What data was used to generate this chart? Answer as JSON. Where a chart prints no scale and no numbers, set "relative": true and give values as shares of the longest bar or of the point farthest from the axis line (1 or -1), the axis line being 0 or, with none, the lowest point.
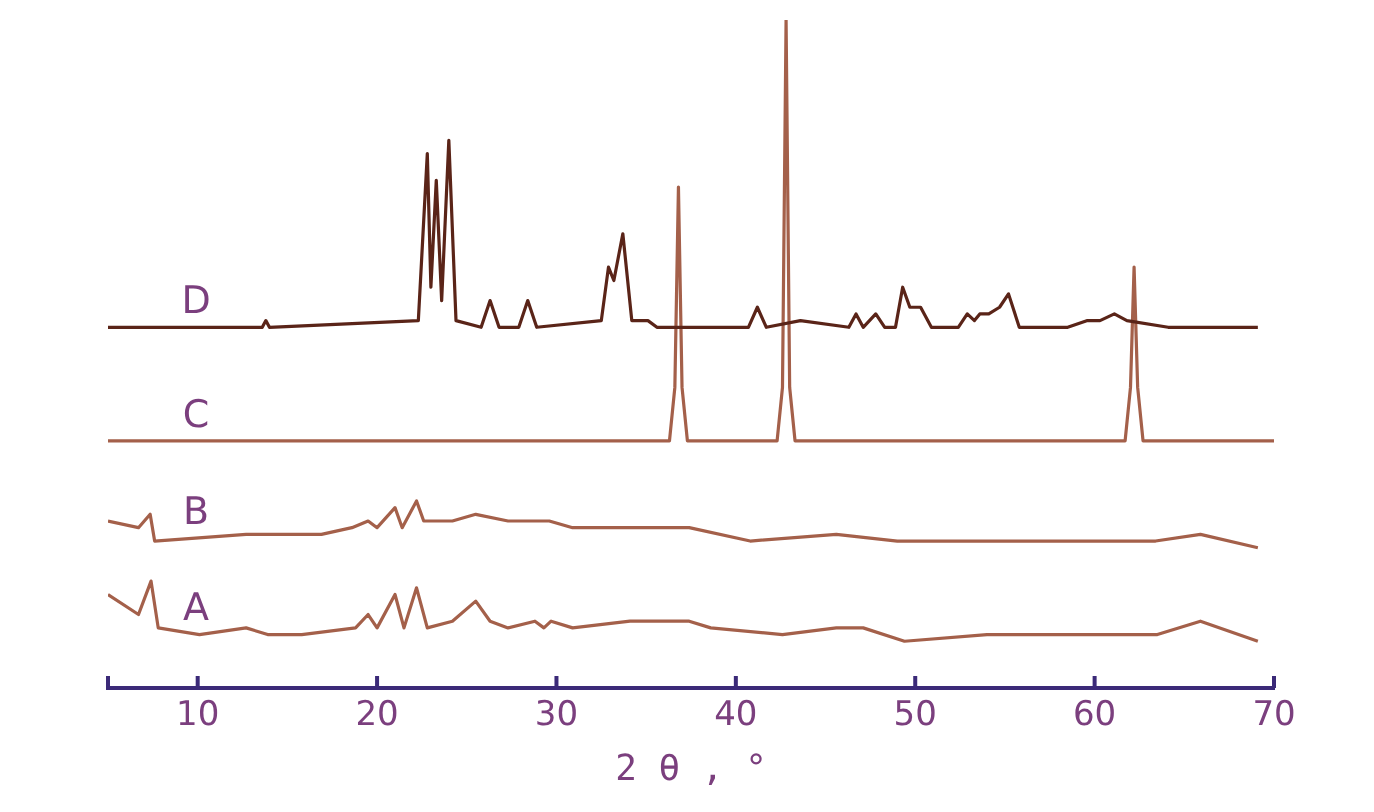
{
  "chart_data": {
    "type": "line",
    "relative": true,
    "xlabel": "2 θ , °",
    "xlim": [
      5,
      70
    ],
    "xticks": [
      10,
      20,
      30,
      40,
      50,
      60,
      70
    ],
    "grid": false,
    "legend": false,
    "marker": "none",
    "line_style": "solid",
    "series": [
      {
        "name": "D",
        "color": "#5a2418",
        "x": [
          5,
          13.6,
          13.8,
          14.0,
          22.3,
          22.8,
          23.0,
          23.3,
          23.6,
          24.0,
          24.4,
          25.8,
          26.3,
          26.8,
          27.9,
          28.4,
          28.9,
          32.5,
          32.9,
          33.2,
          33.7,
          34.2,
          35.1,
          35.6,
          40.7,
          41.2,
          41.7,
          43.6,
          46.3,
          46.7,
          47.1,
          47.8,
          48.3,
          48.9,
          49.3,
          49.7,
          50.3,
          50.9,
          52.4,
          52.9,
          53.3,
          53.6,
          54.1,
          54.7,
          55.2,
          55.8,
          58.5,
          59.6,
          60.3,
          61.1,
          61.8,
          64.1,
          66.7,
          69.1
        ],
        "values": [
          0.54,
          0.54,
          0.55,
          0.54,
          0.55,
          0.8,
          0.6,
          0.76,
          0.58,
          0.82,
          0.55,
          0.54,
          0.58,
          0.54,
          0.54,
          0.58,
          0.54,
          0.55,
          0.63,
          0.61,
          0.68,
          0.55,
          0.55,
          0.54,
          0.54,
          0.57,
          0.54,
          0.55,
          0.54,
          0.56,
          0.54,
          0.56,
          0.54,
          0.54,
          0.6,
          0.57,
          0.57,
          0.54,
          0.54,
          0.56,
          0.55,
          0.56,
          0.56,
          0.57,
          0.59,
          0.54,
          0.54,
          0.55,
          0.55,
          0.56,
          0.55,
          0.54,
          0.54,
          0.54
        ]
      },
      {
        "name": "C",
        "color": "#a4604a",
        "x": [
          5,
          20,
          36.3,
          36.6,
          36.8,
          37.0,
          37.3,
          42.3,
          42.6,
          42.8,
          43.0,
          43.3,
          61.7,
          62.0,
          62.2,
          62.4,
          62.7,
          70
        ],
        "values": [
          0.37,
          0.37,
          0.37,
          0.45,
          0.75,
          0.45,
          0.37,
          0.37,
          0.45,
          1.0,
          0.45,
          0.37,
          0.37,
          0.45,
          0.63,
          0.45,
          0.37,
          0.37
        ]
      },
      {
        "name": "B",
        "color": "#a4604a",
        "x": [
          5,
          6.7,
          7.35,
          7.6,
          12.7,
          16.9,
          18.6,
          19.5,
          20.0,
          21.0,
          21.4,
          22.2,
          22.6,
          24.2,
          25.5,
          27.3,
          28.7,
          29.6,
          30.9,
          34.1,
          37.4,
          40.8,
          45.6,
          49.0,
          55.8,
          63.4,
          65.9,
          69.1
        ],
        "values": [
          0.25,
          0.24,
          0.26,
          0.22,
          0.23,
          0.23,
          0.24,
          0.25,
          0.24,
          0.27,
          0.24,
          0.28,
          0.25,
          0.25,
          0.26,
          0.25,
          0.25,
          0.25,
          0.24,
          0.24,
          0.24,
          0.22,
          0.23,
          0.22,
          0.22,
          0.22,
          0.23,
          0.21
        ]
      },
      {
        "name": "A",
        "color": "#a4604a",
        "x": [
          5,
          6.7,
          7.4,
          7.8,
          10.1,
          12.7,
          13.9,
          15.8,
          18.8,
          19.5,
          20.0,
          21.0,
          21.5,
          22.2,
          22.8,
          24.2,
          25.5,
          26.3,
          27.3,
          28.8,
          29.3,
          29.7,
          30.9,
          34.1,
          37.4,
          38.6,
          42.6,
          45.6,
          47.1,
          49.4,
          54.0,
          58.0,
          63.5,
          65.9,
          69.1
        ],
        "values": [
          0.14,
          0.11,
          0.16,
          0.09,
          0.08,
          0.09,
          0.08,
          0.08,
          0.09,
          0.11,
          0.09,
          0.14,
          0.09,
          0.15,
          0.09,
          0.1,
          0.13,
          0.1,
          0.09,
          0.1,
          0.09,
          0.1,
          0.09,
          0.1,
          0.1,
          0.09,
          0.08,
          0.09,
          0.09,
          0.07,
          0.08,
          0.08,
          0.08,
          0.1,
          0.07
        ]
      }
    ]
  }
}
